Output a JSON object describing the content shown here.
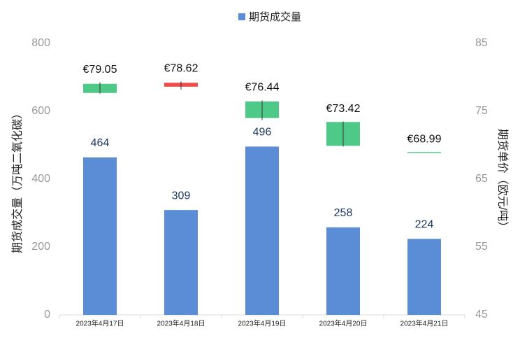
{
  "chart_data": {
    "type": "combo",
    "categories": [
      "2023年4月17日",
      "2023年4月18日",
      "2023年4月19日",
      "2023年4月20日",
      "2023年4月21日"
    ],
    "ylabel": "期货成交量（万吨二氧化碳）",
    "y2label": "期货单价（欧元/吨）",
    "ylim": [
      0,
      800
    ],
    "yticks": [
      0,
      200,
      400,
      600,
      800
    ],
    "y2lim": [
      45,
      85
    ],
    "y2ticks": [
      45,
      55,
      65,
      75,
      85
    ],
    "legend": "top",
    "series": [
      {
        "name": "期货成交量",
        "type": "bar",
        "color": "#5a8dd6",
        "values": [
          464,
          309,
          496,
          258,
          224
        ]
      },
      {
        "type": "candlestick",
        "axis": "y2",
        "up_color": "#4fc987",
        "down_color": "#ee4b4b",
        "open": [
          77.7,
          79.2,
          74.0,
          69.9,
          68.99
        ],
        "high": [
          79.25,
          79.4,
          76.6,
          73.5,
          68.99
        ],
        "low": [
          77.6,
          78.2,
          73.7,
          69.8,
          68.99
        ],
        "close": [
          79.05,
          78.62,
          76.44,
          73.42,
          68.99
        ],
        "value_labels": [
          "€79.05",
          "€78.62",
          "€76.44",
          "€73.42",
          "€68.99"
        ]
      }
    ]
  }
}
